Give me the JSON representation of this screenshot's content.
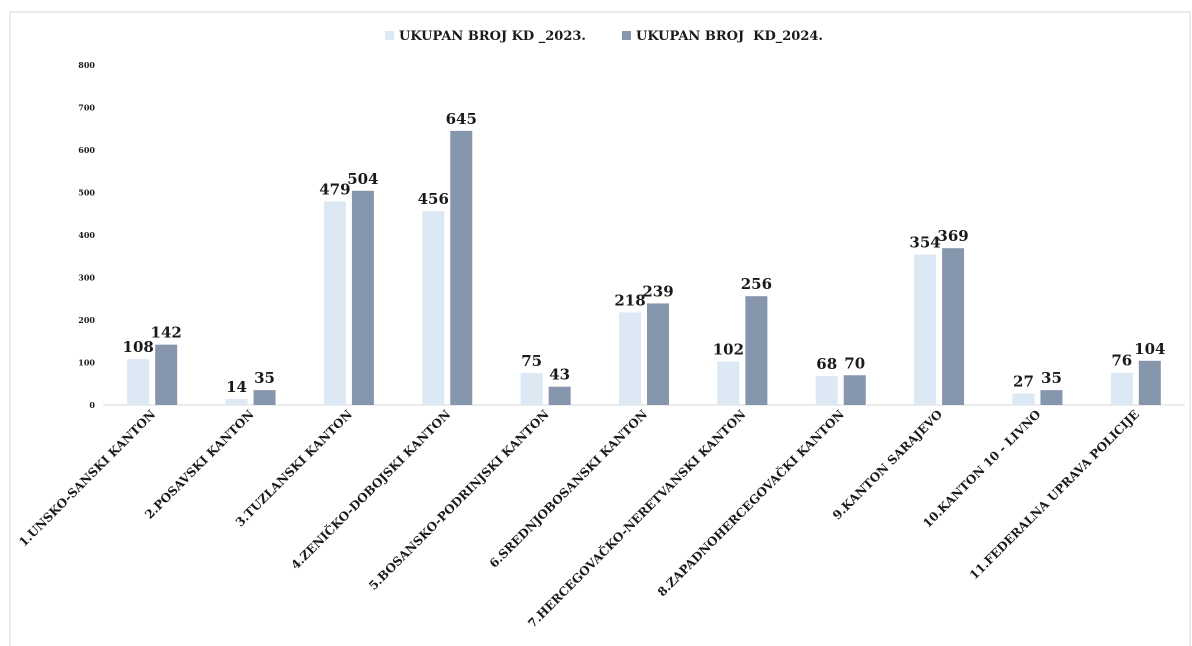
{
  "chart_data": {
    "type": "bar",
    "categories": [
      "1.UNSKO-SANSKI KANTON",
      "2.POSAVSKI KANTON",
      "3.TUZLANSKI KANTON",
      "4.ZENIČKO-DOBOJSKI KANTON",
      "5.BOSANSKO-PODRINJSKI KANTON",
      "6.SREDNJOBOSANSKI KANTON",
      "7.HERCEGOVAČKO-NERETVANSKI KANTON",
      "8.ZAPADNOHERCEGOVAČKI KANTON",
      "9.KANTON SARAJEVO",
      "10.KANTON 10 - LIVNO",
      "11.FEDERALNA UPRAVA POLICIJE"
    ],
    "series": [
      {
        "name": "UKUPAN BROJ KD _2023.",
        "color": "#dde8f5",
        "values": [
          108,
          14,
          479,
          456,
          75,
          218,
          102,
          68,
          354,
          27,
          76
        ]
      },
      {
        "name": "UKUPAN BROJ  KD_2024.",
        "color": "#8596ad",
        "values": [
          142,
          35,
          504,
          645,
          43,
          239,
          256,
          70,
          369,
          35,
          104
        ]
      }
    ],
    "ylim": [
      0,
      800
    ],
    "yticks": [
      0,
      100,
      200,
      300,
      400,
      500,
      600,
      700,
      800
    ],
    "grid": false,
    "legend": "top"
  }
}
